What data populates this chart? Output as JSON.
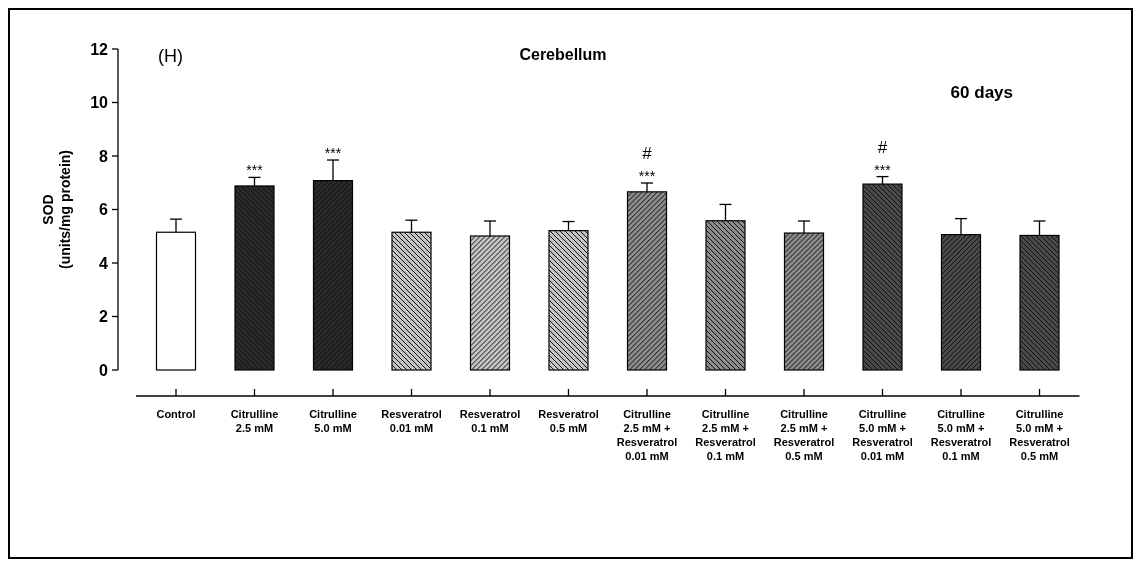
{
  "chart_data": {
    "type": "bar",
    "title": "Cerebellum",
    "ylabel": "SOD\n(units/mg protein)",
    "categories": [
      "Control",
      "Citrulline\n2.5 mM",
      "Citrulline\n5.0 mM",
      "Resveratrol\n0.01 mM",
      "Resveratrol\n0.1 mM",
      "Resveratrol\n0.5 mM",
      "Citrulline\n2.5 mM +\nResveratrol\n0.01 mM",
      "Citrulline\n2.5 mM +\nResveratrol\n0.1 mM",
      "Citrulline\n2.5 mM +\nResveratrol\n0.5 mM",
      "Citrulline\n5.0 mM +\nResveratrol\n0.01 mM",
      "Citrulline\n5.0 mM +\nResveratrol\n0.1 mM",
      "Citrulline\n5.0 mM +\nResveratrol\n0.5 mM"
    ],
    "values": [
      5.15,
      6.88,
      7.08,
      5.15,
      5.01,
      5.21,
      6.66,
      5.58,
      5.12,
      6.95,
      5.06,
      5.03
    ],
    "errors": [
      [
        5.15,
        5.64
      ],
      [
        6.88,
        7.2
      ],
      [
        7.08,
        7.85
      ],
      [
        5.15,
        5.6
      ],
      [
        5.01,
        5.57
      ],
      [
        5.21,
        5.55
      ],
      [
        6.66,
        6.99
      ],
      [
        5.58,
        6.19
      ],
      [
        5.12,
        5.57
      ],
      [
        6.95,
        7.23
      ],
      [
        5.06,
        5.66
      ],
      [
        5.03,
        5.57
      ]
    ],
    "colors": [
      "#ffffff",
      "#2a2a2a",
      "#2a2a2a",
      "#c4c4c4",
      "#c4c4c4",
      "#c4c4c4",
      "#8c8c8c",
      "#8c8c8c",
      "#8c8c8c",
      "#4a4a4a",
      "#4a4a4a",
      "#4a4a4a"
    ],
    "ylim": [
      0,
      12
    ],
    "yticks": [
      0,
      2,
      4,
      6,
      8,
      10,
      12
    ],
    "annotations": [
      "(H)",
      "60 days",
      {
        "text": "***",
        "x": "Citrulline\n2.5 mM",
        "y": 7.2
      },
      {
        "text": "***",
        "x": "Citrulline\n5.0 mM",
        "y": 7.85
      },
      {
        "text": "***",
        "x": "Citrulline\n2.5 mM +\nResveratrol\n0.01 mM",
        "y": 6.99
      },
      {
        "text": "#",
        "x": "Citrulline\n2.5 mM +\nResveratrol\n0.01 mM",
        "y": 6.99
      },
      {
        "text": "***",
        "x": "Citrulline\n5.0 mM +\nResveratrol\n0.01 mM",
        "y": 7.23
      },
      {
        "text": "#",
        "x": "Citrulline\n5.0 mM +\nResveratrol\n0.01 mM",
        "y": 7.23
      }
    ]
  }
}
